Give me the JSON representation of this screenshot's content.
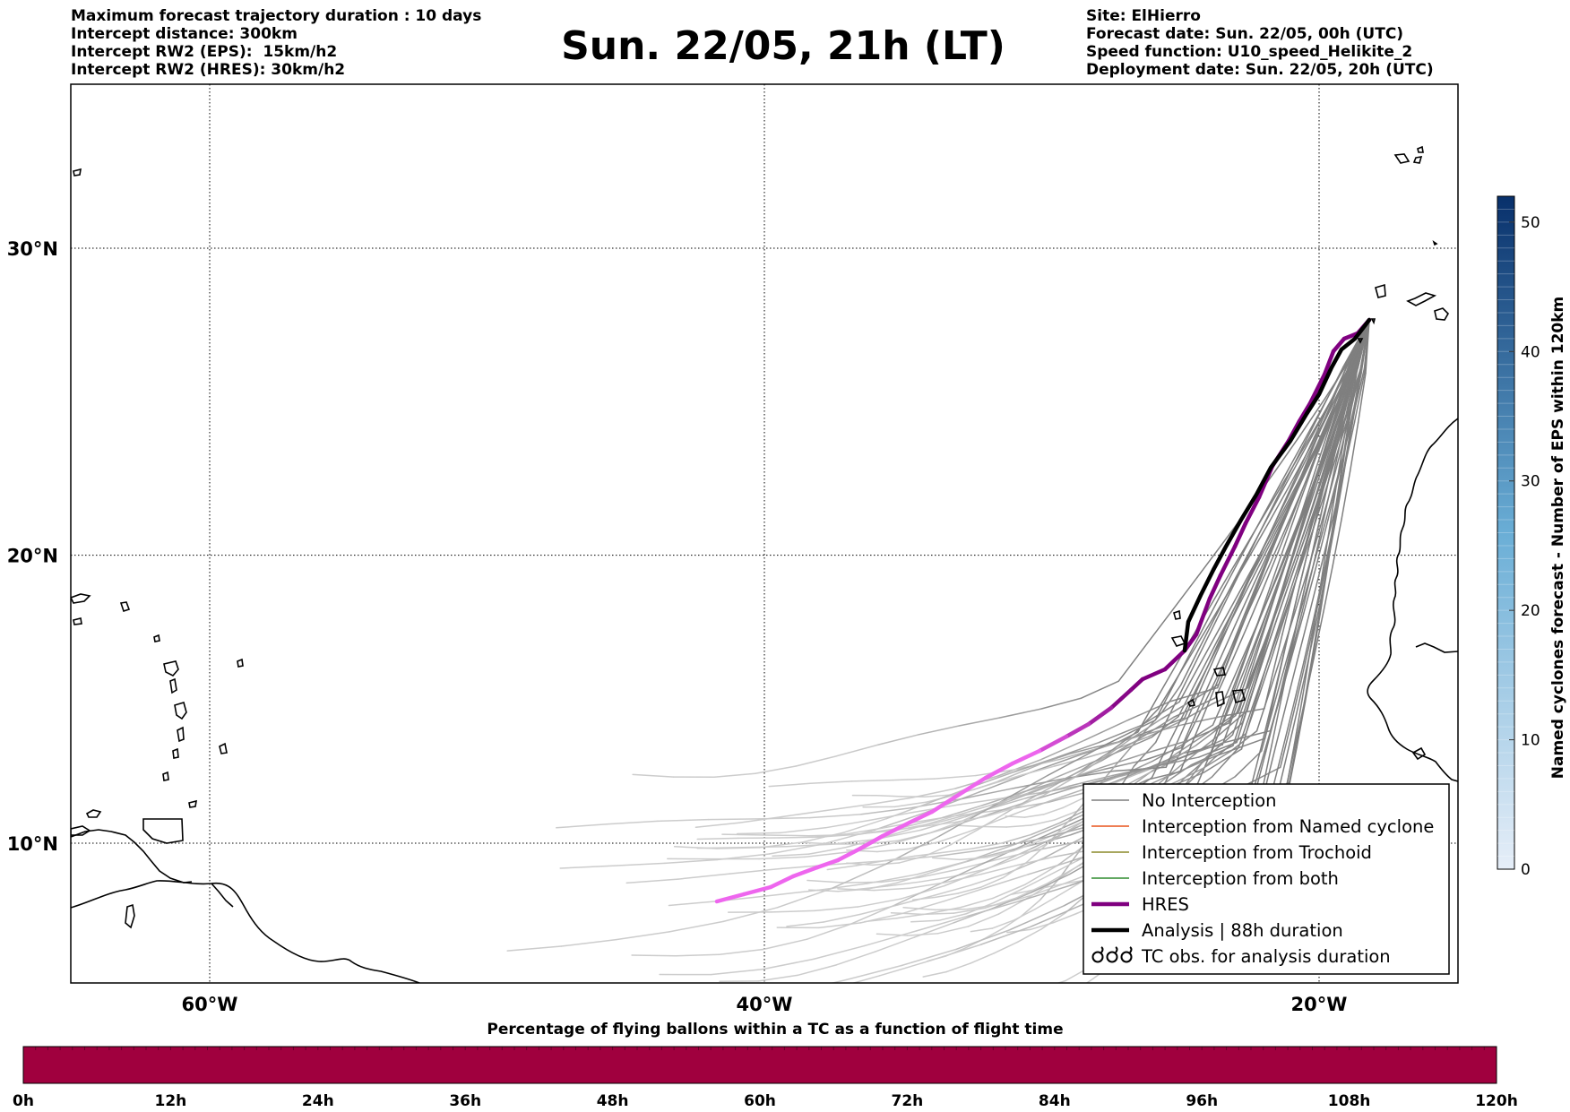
{
  "header": {
    "left_lines": [
      "Maximum forecast trajectory duration : 10 days",
      "Intercept distance: 300km",
      "Intercept RW2 (EPS):  15km/h2",
      "Intercept RW2 (HRES): 30km/h2"
    ],
    "title": "Sun. 22/05, 21h (LT)",
    "right_lines": [
      "Site: ElHierro",
      "Forecast date: Sun. 22/05, 00h (UTC)",
      "Speed function: U10_speed_Helikite_2",
      "Deployment date: Sun. 22/05, 20h (UTC)"
    ]
  },
  "map": {
    "lon_range": [
      -65,
      15
    ],
    "lat_range": [
      5,
      35
    ],
    "lon_ticks": [
      {
        "value": -60,
        "label": "60°W"
      },
      {
        "value": -40,
        "label": "40°W"
      },
      {
        "value": -20,
        "label": "20°W"
      }
    ],
    "lat_ticks": [
      {
        "value": 30,
        "label": "30°N"
      },
      {
        "value": 20,
        "label": "20°N"
      },
      {
        "value": 10,
        "label": "10°N"
      }
    ],
    "grid": "dotted",
    "coastline_color": "#000000"
  },
  "legend": {
    "placement": "bottom-right",
    "items": [
      {
        "label": "No Interception",
        "color": "#7f7f7f",
        "style": "line-thin"
      },
      {
        "label": "Interception from Named cyclone",
        "color": "#e8541b",
        "style": "line-thin"
      },
      {
        "label": "Interception from Trochoid",
        "color": "#8c8a2a",
        "style": "line-thin"
      },
      {
        "label": "Interception from both",
        "color": "#2e8b2e",
        "style": "line-thin"
      },
      {
        "label": "HRES",
        "color": "#800080",
        "style": "line-thick"
      },
      {
        "label": "Analysis | 88h duration",
        "color": "#000000",
        "style": "line-thick"
      },
      {
        "label": "TC obs. for analysis duration",
        "color": "#000000",
        "style": "cyclone-symbols"
      }
    ]
  },
  "colorbar_vertical": {
    "label": "Named cyclones forecast - Number of EPS within 120km",
    "range": [
      0,
      52
    ],
    "ticks": [
      "0",
      "10",
      "20",
      "30",
      "40",
      "50"
    ],
    "color_low": "#e6eef8",
    "color_high": "#08306b"
  },
  "colorbar_horizontal": {
    "title": "Percentage of flying ballons within a TC as a function of flight time",
    "tick_labels": [
      "0h",
      "12h",
      "24h",
      "36h",
      "48h",
      "60h",
      "72h",
      "84h",
      "96h",
      "108h",
      "120h"
    ],
    "fill_color": "#a0003e"
  },
  "colors": {
    "eps_near": "#7f7f7f",
    "eps_far": "#cccccc",
    "hres_near": "#800080",
    "hres_far": "#ee66ee",
    "analysis": "#000000"
  }
}
